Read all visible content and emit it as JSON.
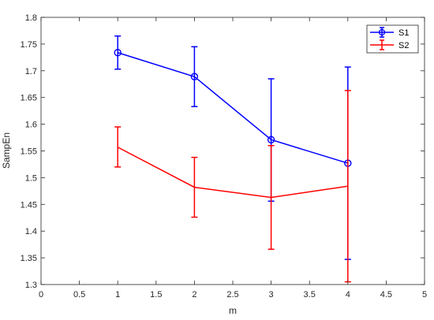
{
  "chart_data": {
    "type": "line",
    "xlabel": "m",
    "ylabel": "SampEn",
    "xlim": [
      0,
      5
    ],
    "ylim": [
      1.3,
      1.8
    ],
    "xticks": [
      0,
      0.5,
      1,
      1.5,
      2,
      2.5,
      3,
      3.5,
      4,
      4.5,
      5
    ],
    "yticks": [
      1.3,
      1.35,
      1.4,
      1.45,
      1.5,
      1.55,
      1.6,
      1.65,
      1.7,
      1.75,
      1.8
    ],
    "xtick_labels": [
      "0",
      "0.5",
      "1",
      "1.5",
      "2",
      "2.5",
      "3",
      "3.5",
      "4",
      "4.5",
      "5"
    ],
    "ytick_labels": [
      "1.3",
      "1.35",
      "1.4",
      "1.45",
      "1.5",
      "1.55",
      "1.6",
      "1.65",
      "1.7",
      "1.75",
      "1.8"
    ],
    "grid": false,
    "legend_position": "top-right",
    "series": [
      {
        "name": "S1",
        "color": "#0000ff",
        "marker": "circle",
        "x": [
          1,
          2,
          3,
          4
        ],
        "y": [
          1.734,
          1.689,
          1.571,
          1.527
        ],
        "err_low": [
          1.703,
          1.633,
          1.456,
          1.347
        ],
        "err_high": [
          1.765,
          1.745,
          1.685,
          1.707
        ]
      },
      {
        "name": "S2",
        "color": "#ff0000",
        "marker": "none",
        "x": [
          1,
          2,
          3,
          4
        ],
        "y": [
          1.557,
          1.482,
          1.463,
          1.484
        ],
        "err_low": [
          1.52,
          1.426,
          1.366,
          1.305
        ],
        "err_high": [
          1.595,
          1.538,
          1.56,
          1.663
        ]
      }
    ]
  }
}
